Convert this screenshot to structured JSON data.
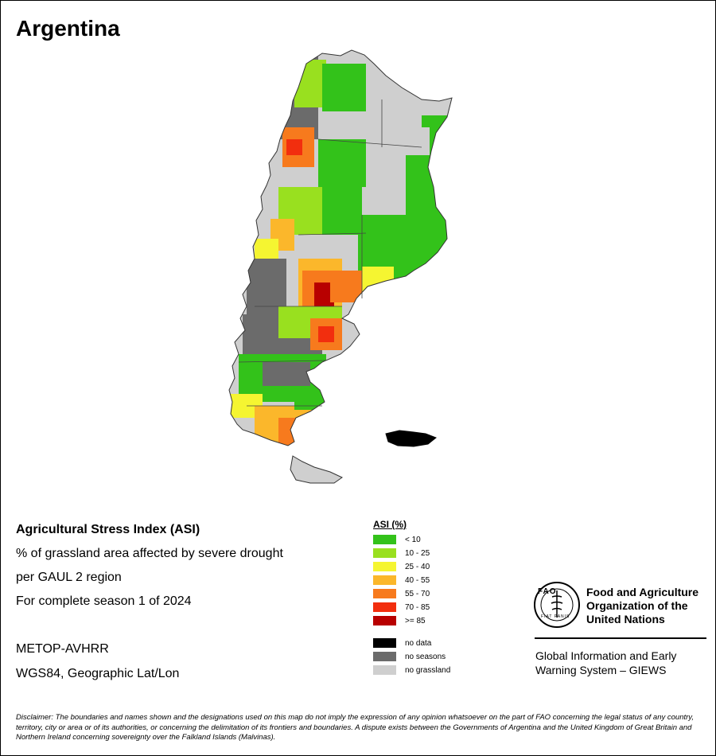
{
  "map_title": "Argentina",
  "info": {
    "index_title": "Agricultural Stress Index (ASI)",
    "line1": "% of grassland area affected by severe drought",
    "line2": "per GAUL 2 region",
    "line3": "For complete season 1 of 2024",
    "sensor": "METOP-AVHRR",
    "projection": "WGS84, Geographic Lat/Lon"
  },
  "legend": {
    "title": "ASI (%)",
    "classes": [
      {
        "label": "< 10",
        "color": "#33c21a"
      },
      {
        "label": "10 - 25",
        "color": "#99e01f"
      },
      {
        "label": "25 - 40",
        "color": "#f5f531"
      },
      {
        "label": "40 - 55",
        "color": "#fbb72b"
      },
      {
        "label": "55 - 70",
        "color": "#f77a1d"
      },
      {
        "label": "70 - 85",
        "color": "#f22e0e"
      },
      {
        "label": ">= 85",
        "color": "#b80000"
      }
    ],
    "other": [
      {
        "label": "no data",
        "color": "#000000"
      },
      {
        "label": "no seasons",
        "color": "#6b6b6b"
      },
      {
        "label": "no grassland",
        "color": "#cfcfcf"
      }
    ]
  },
  "org": {
    "name_line1": "Food and Agriculture",
    "name_line2": "Organization of the",
    "name_line3": "United Nations",
    "logo_text": "FAO",
    "logo_motto": "FIAT PANIS",
    "giews_line1": "Global Information and Early",
    "giews_line2": "Warning System – GIEWS"
  },
  "disclaimer": "Disclaimer: The boundaries and names shown and the designations used on this map do not imply the expression of any opinion whatsoever on the part of FAO concerning the legal status of any country, territory, city or area or of its authorities, or concerning the delimitation of its frontiers and boundaries. A dispute exists between the Governments of Argentina and the United Kingdom of Great Britain and Northern Ireland concerning sovereignty over the Falkland Islands (Malvinas)."
}
